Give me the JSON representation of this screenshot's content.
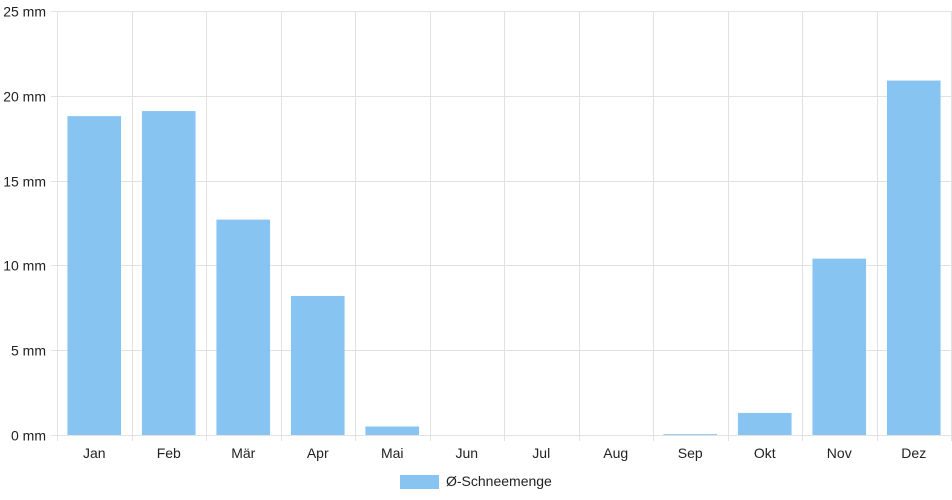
{
  "chart_data": {
    "type": "bar",
    "categories": [
      "Jan",
      "Feb",
      "Mär",
      "Apr",
      "Mai",
      "Jun",
      "Jul",
      "Aug",
      "Sep",
      "Okt",
      "Nov",
      "Dez"
    ],
    "series": [
      {
        "name": "Ø-Schneemenge",
        "values": [
          18.8,
          19.1,
          12.7,
          8.2,
          0.5,
          0,
          0,
          0,
          0.05,
          1.3,
          10.4,
          20.9
        ],
        "color": "#88c4f1"
      }
    ],
    "y_ticks": [
      "0 mm",
      "5 mm",
      "10 mm",
      "15 mm",
      "20 mm",
      "25 mm"
    ],
    "ylim": [
      0,
      25
    ],
    "grid": true,
    "legend_position": "bottom-center"
  }
}
